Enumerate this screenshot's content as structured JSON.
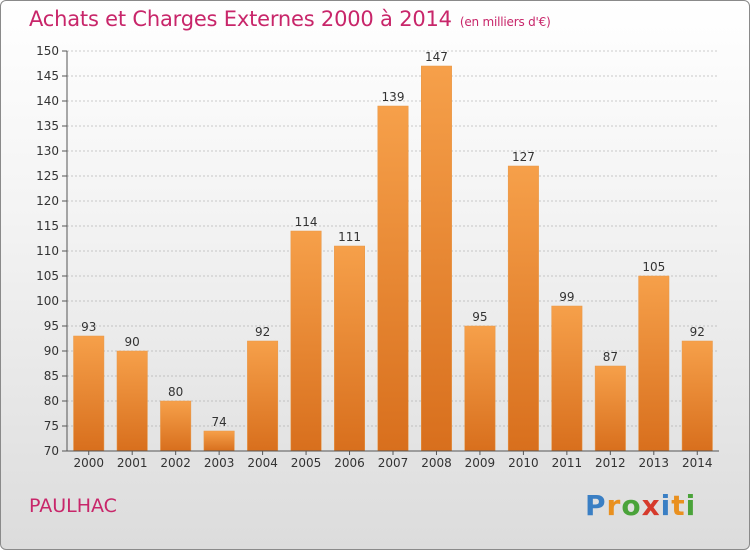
{
  "header": {
    "title": "Achats et Charges Externes 2000 à 2014",
    "unit": "(en milliers d'€)"
  },
  "footer": {
    "commune": "PAULHAC",
    "logo_text": "Proxiti",
    "logo_colors": [
      "#3a7fc4",
      "#e9901f",
      "#4aa33a",
      "#d63a2c",
      "#3a7fc4",
      "#e9901f",
      "#4aa33a"
    ]
  },
  "colors": {
    "title": "#c8266a",
    "bar_light": "#f6a04a",
    "bar_dark": "#d86f1d",
    "grid": "#9a9a9a",
    "axis": "#555555"
  },
  "chart_data": {
    "type": "bar",
    "categories": [
      "2000",
      "2001",
      "2002",
      "2003",
      "2004",
      "2005",
      "2006",
      "2007",
      "2008",
      "2009",
      "2010",
      "2011",
      "2012",
      "2013",
      "2014"
    ],
    "values": [
      93,
      90,
      80,
      74,
      92,
      114,
      111,
      139,
      147,
      95,
      127,
      99,
      87,
      105,
      92
    ],
    "title": "Achats et Charges Externes 2000 à 2014",
    "subtitle": "(en milliers d'€)",
    "xlabel": "",
    "ylabel": "",
    "ylim": [
      70,
      150
    ],
    "yticks": [
      70,
      75,
      80,
      85,
      90,
      95,
      100,
      105,
      110,
      115,
      120,
      125,
      130,
      135,
      140,
      145,
      150
    ],
    "grid": true,
    "data_labels": true
  }
}
